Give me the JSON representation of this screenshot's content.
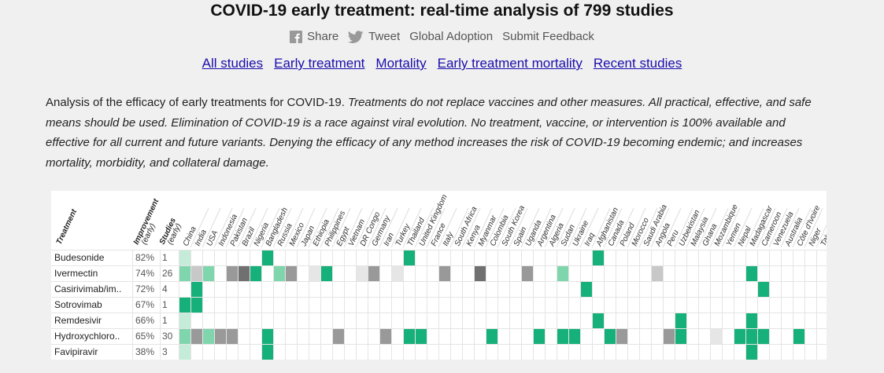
{
  "title": "COVID-19 early treatment: real-time analysis of 799 studies",
  "social": {
    "share": "Share",
    "tweet": "Tweet",
    "global_adoption": "Global Adoption",
    "submit_feedback": "Submit Feedback"
  },
  "nav": [
    "All studies",
    "Early treatment",
    "Mortality",
    "Early treatment mortality",
    "Recent studies"
  ],
  "description": {
    "lead": "Analysis of the efficacy of early treatments for COVID-19. ",
    "rest": "Treatments do not replace vaccines and other measures. All practical, effective, and safe means should be used. Elimination of COVID-19 is a race against viral evolution. No treatment, vaccine, or intervention is 100% available and effective for all current and future variants. Denying the efficacy of any method increases the risk of COVID-19 becoming endemic; and increases mortality, morbidity, and collateral damage."
  },
  "colors": {
    "positive": "#16b07a",
    "light_positive": "#7fd6ad",
    "faint_positive": "#c5ecd8",
    "neutral": "#999999",
    "dark_neutral": "#707070",
    "light_neutral": "#c8c8c8",
    "faint_neutral": "#e6e6e6",
    "link": "#1a0dab"
  },
  "chart_data": {
    "type": "heatmap",
    "column_headers": {
      "treatment": "Treatment",
      "improvement": "Improvement (early)",
      "studies": "Studies (early)"
    },
    "countries": [
      "China",
      "India",
      "USA",
      "Indonesia",
      "Pakistan",
      "Brazil",
      "Nigeria",
      "Bangladesh",
      "Russia",
      "Mexico",
      "Japan",
      "Ethiopia",
      "Philippines",
      "Egypt",
      "Vietnam",
      "DR Congo",
      "Germany",
      "Iran",
      "Turkey",
      "Thailand",
      "United Kingdom",
      "France",
      "Italy",
      "South Africa",
      "Kenya",
      "Myanmar",
      "Colombia",
      "South Korea",
      "Spain",
      "Uganda",
      "Argentina",
      "Algeria",
      "Sudan",
      "Ukraine",
      "Iraq",
      "Afghanistan",
      "Canada",
      "Poland",
      "Morocco",
      "Saudi Arabia",
      "Angola",
      "Peru",
      "Uzbekistan",
      "Malaysia",
      "Ghana",
      "Mozambique",
      "Yemen",
      "Nepal",
      "Madagascar",
      "Cameroon",
      "Venezuela",
      "Australia",
      "Côte d'Ivoire",
      "Niger",
      "Taiwan"
    ],
    "legend": {
      "P": "positive",
      "L": "light_positive",
      "F": "faint_positive",
      "N": "neutral",
      "D": "dark_neutral",
      "G": "light_neutral",
      "E": "faint_neutral"
    },
    "rows": [
      {
        "name": "Budesonide",
        "improvement": "82%",
        "studies": "1",
        "cells": {
          "China": "F",
          "Bangladesh": "P",
          "Thailand": "P",
          "Afghanistan": "P"
        }
      },
      {
        "name": "Ivermectin",
        "improvement": "74%",
        "studies": "26",
        "cells": {
          "China": "L",
          "India": "G",
          "USA": "L",
          "Pakistan": "N",
          "Brazil": "D",
          "Nigeria": "P",
          "Russia": "L",
          "Mexico": "N",
          "Ethiopia": "E",
          "Philippines": "P",
          "DR Congo": "E",
          "Germany": "N",
          "Turkey": "E",
          "Italy": "N",
          "Myanmar": "D",
          "Uganda": "N",
          "Sudan": "L",
          "Angola": "G",
          "Madagascar": "P"
        }
      },
      {
        "name": "Casirivimab/im..",
        "improvement": "72%",
        "studies": "4",
        "cells": {
          "India": "P",
          "Iraq": "P",
          "Cameroon": "P"
        }
      },
      {
        "name": "Sotrovimab",
        "improvement": "67%",
        "studies": "1",
        "cells": {
          "China": "P",
          "India": "P"
        }
      },
      {
        "name": "Remdesivir",
        "improvement": "66%",
        "studies": "1",
        "cells": {
          "China": "F",
          "Afghanistan": "P",
          "Uzbekistan": "P",
          "Madagascar": "P"
        }
      },
      {
        "name": "Hydroxychloro..",
        "improvement": "65%",
        "studies": "30",
        "cells": {
          "Thailand": "P",
          "China": "L",
          "India": "N",
          "USA": "L",
          "Indonesia": "N",
          "Pakistan": "N",
          "Bangladesh": "P",
          "Egypt": "N",
          "Iran": "N",
          "United Kingdom": "P",
          "Colombia": "P",
          "Argentina": "P",
          "Sudan": "P",
          "Ukraine": "P",
          "Canada": "P",
          "Poland": "N",
          "Peru": "N",
          "Uzbekistan": "P",
          "Mozambique": "E",
          "Nepal": "P",
          "Madagascar": "P",
          "Cameroon": "P",
          "Côte d'Ivoire": "P"
        }
      },
      {
        "name": "Favipiravir",
        "improvement": "38%",
        "studies": "3",
        "cells": {
          "China": "F",
          "Bangladesh": "P",
          "Madagascar": "P"
        }
      }
    ]
  }
}
